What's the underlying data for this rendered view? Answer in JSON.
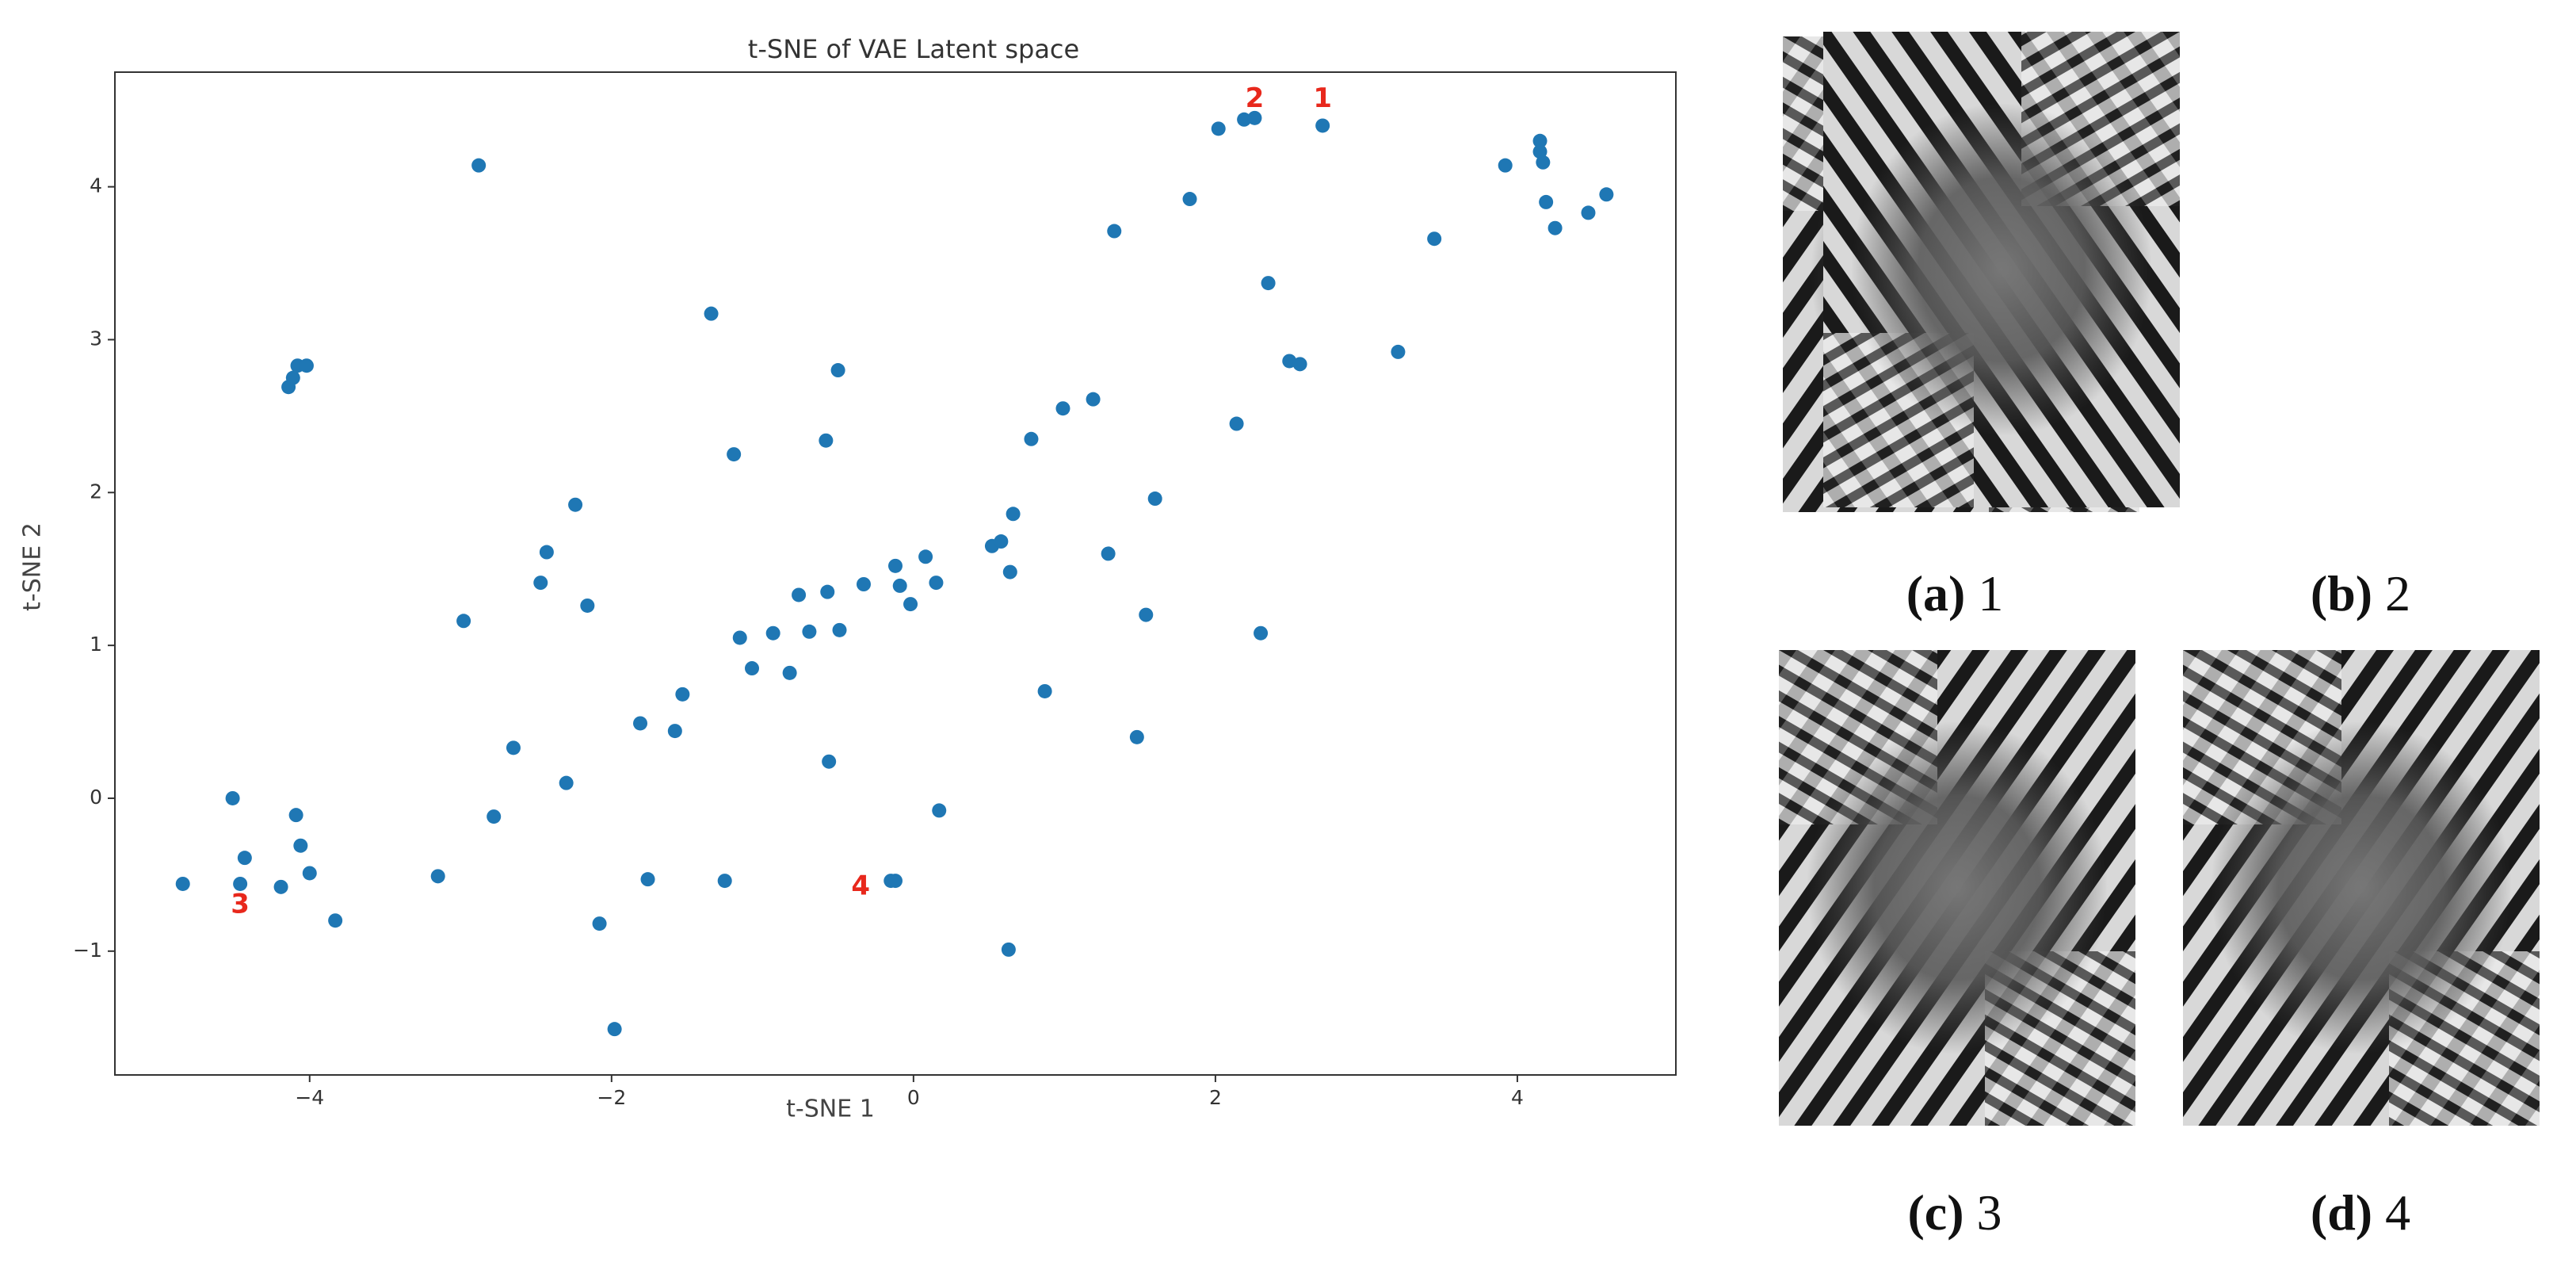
{
  "chart_data": {
    "type": "scatter",
    "title": "t-SNE of VAE Latent space",
    "x_label": "t-SNE 1",
    "y_label": "t-SNE 2",
    "xlim": [
      -5.29,
      5.05
    ],
    "ylim": [
      -1.81,
      4.75
    ],
    "xticks": [
      {
        "value": -4,
        "label": "−4"
      },
      {
        "value": -2,
        "label": "−2"
      },
      0,
      2,
      4
    ],
    "yticks": [
      {
        "value": -1,
        "label": "−1"
      },
      0,
      1,
      2,
      3,
      4
    ],
    "grid": false,
    "series": [
      {
        "color": "#1f77b4",
        "x": [
          -4.84,
          -4.51,
          -4.43,
          -4.46,
          -4.19,
          -4.09,
          -4.06,
          -4.0,
          -3.83,
          -4.14,
          -4.11,
          -4.08,
          -4.02,
          -2.88,
          -2.98,
          -3.15,
          -2.78,
          -2.65,
          -2.47,
          -2.43,
          -2.3,
          -2.24,
          -2.16,
          -2.08,
          -1.98,
          -1.81,
          -1.76,
          -1.58,
          -1.53,
          -1.34,
          -1.25,
          -1.19,
          -1.15,
          -1.07,
          -0.93,
          -0.82,
          -0.76,
          -0.69,
          -0.58,
          -0.56,
          -0.57,
          -0.5,
          -0.49,
          -0.33,
          -0.15,
          -0.12,
          -0.12,
          -0.09,
          -0.02,
          0.08,
          0.15,
          0.17,
          0.52,
          0.58,
          0.64,
          0.66,
          0.63,
          0.78,
          0.87,
          0.99,
          1.19,
          1.29,
          1.33,
          1.48,
          1.54,
          1.6,
          1.83,
          2.02,
          2.14,
          2.19,
          2.26,
          2.3,
          2.35,
          2.49,
          2.56,
          2.71,
          3.21,
          3.45,
          3.92,
          4.15,
          4.15,
          4.17,
          4.19,
          4.25,
          4.47,
          4.59
        ],
        "y": [
          -0.56,
          0.0,
          -0.39,
          -0.56,
          -0.58,
          -0.11,
          -0.31,
          -0.49,
          -0.8,
          2.69,
          2.75,
          2.83,
          2.83,
          4.14,
          1.16,
          -0.51,
          -0.12,
          0.33,
          1.41,
          1.61,
          0.1,
          1.92,
          1.26,
          -0.82,
          -1.51,
          0.49,
          -0.53,
          0.44,
          0.68,
          3.17,
          -0.54,
          2.25,
          1.05,
          0.85,
          1.08,
          0.82,
          1.33,
          1.09,
          2.34,
          0.24,
          1.35,
          2.8,
          1.1,
          1.4,
          -0.54,
          -0.54,
          1.52,
          1.39,
          1.27,
          1.58,
          1.41,
          -0.08,
          1.65,
          1.68,
          1.48,
          1.86,
          -0.99,
          2.35,
          0.7,
          2.55,
          2.61,
          1.6,
          3.71,
          0.4,
          1.2,
          1.96,
          3.92,
          4.38,
          2.45,
          4.44,
          4.45,
          1.08,
          3.37,
          2.86,
          2.84,
          4.4,
          2.92,
          3.66,
          4.14,
          4.3,
          4.23,
          4.16,
          3.9,
          3.73,
          3.83,
          3.95
        ]
      }
    ],
    "annotations": [
      {
        "text": "1",
        "x": 2.71,
        "y": 4.57,
        "color": "#e8281c"
      },
      {
        "text": "2",
        "x": 2.26,
        "y": 4.57,
        "color": "#e8281c"
      },
      {
        "text": "3",
        "x": -4.46,
        "y": -0.7,
        "color": "#e8281c"
      },
      {
        "text": "4",
        "x": -0.35,
        "y": -0.58,
        "color": "#e8281c"
      }
    ]
  },
  "subfigures": [
    {
      "tag": "(a)",
      "caption": "1"
    },
    {
      "tag": "(b)",
      "caption": "2"
    },
    {
      "tag": "(c)",
      "caption": "3"
    },
    {
      "tag": "(d)",
      "caption": "4"
    }
  ]
}
